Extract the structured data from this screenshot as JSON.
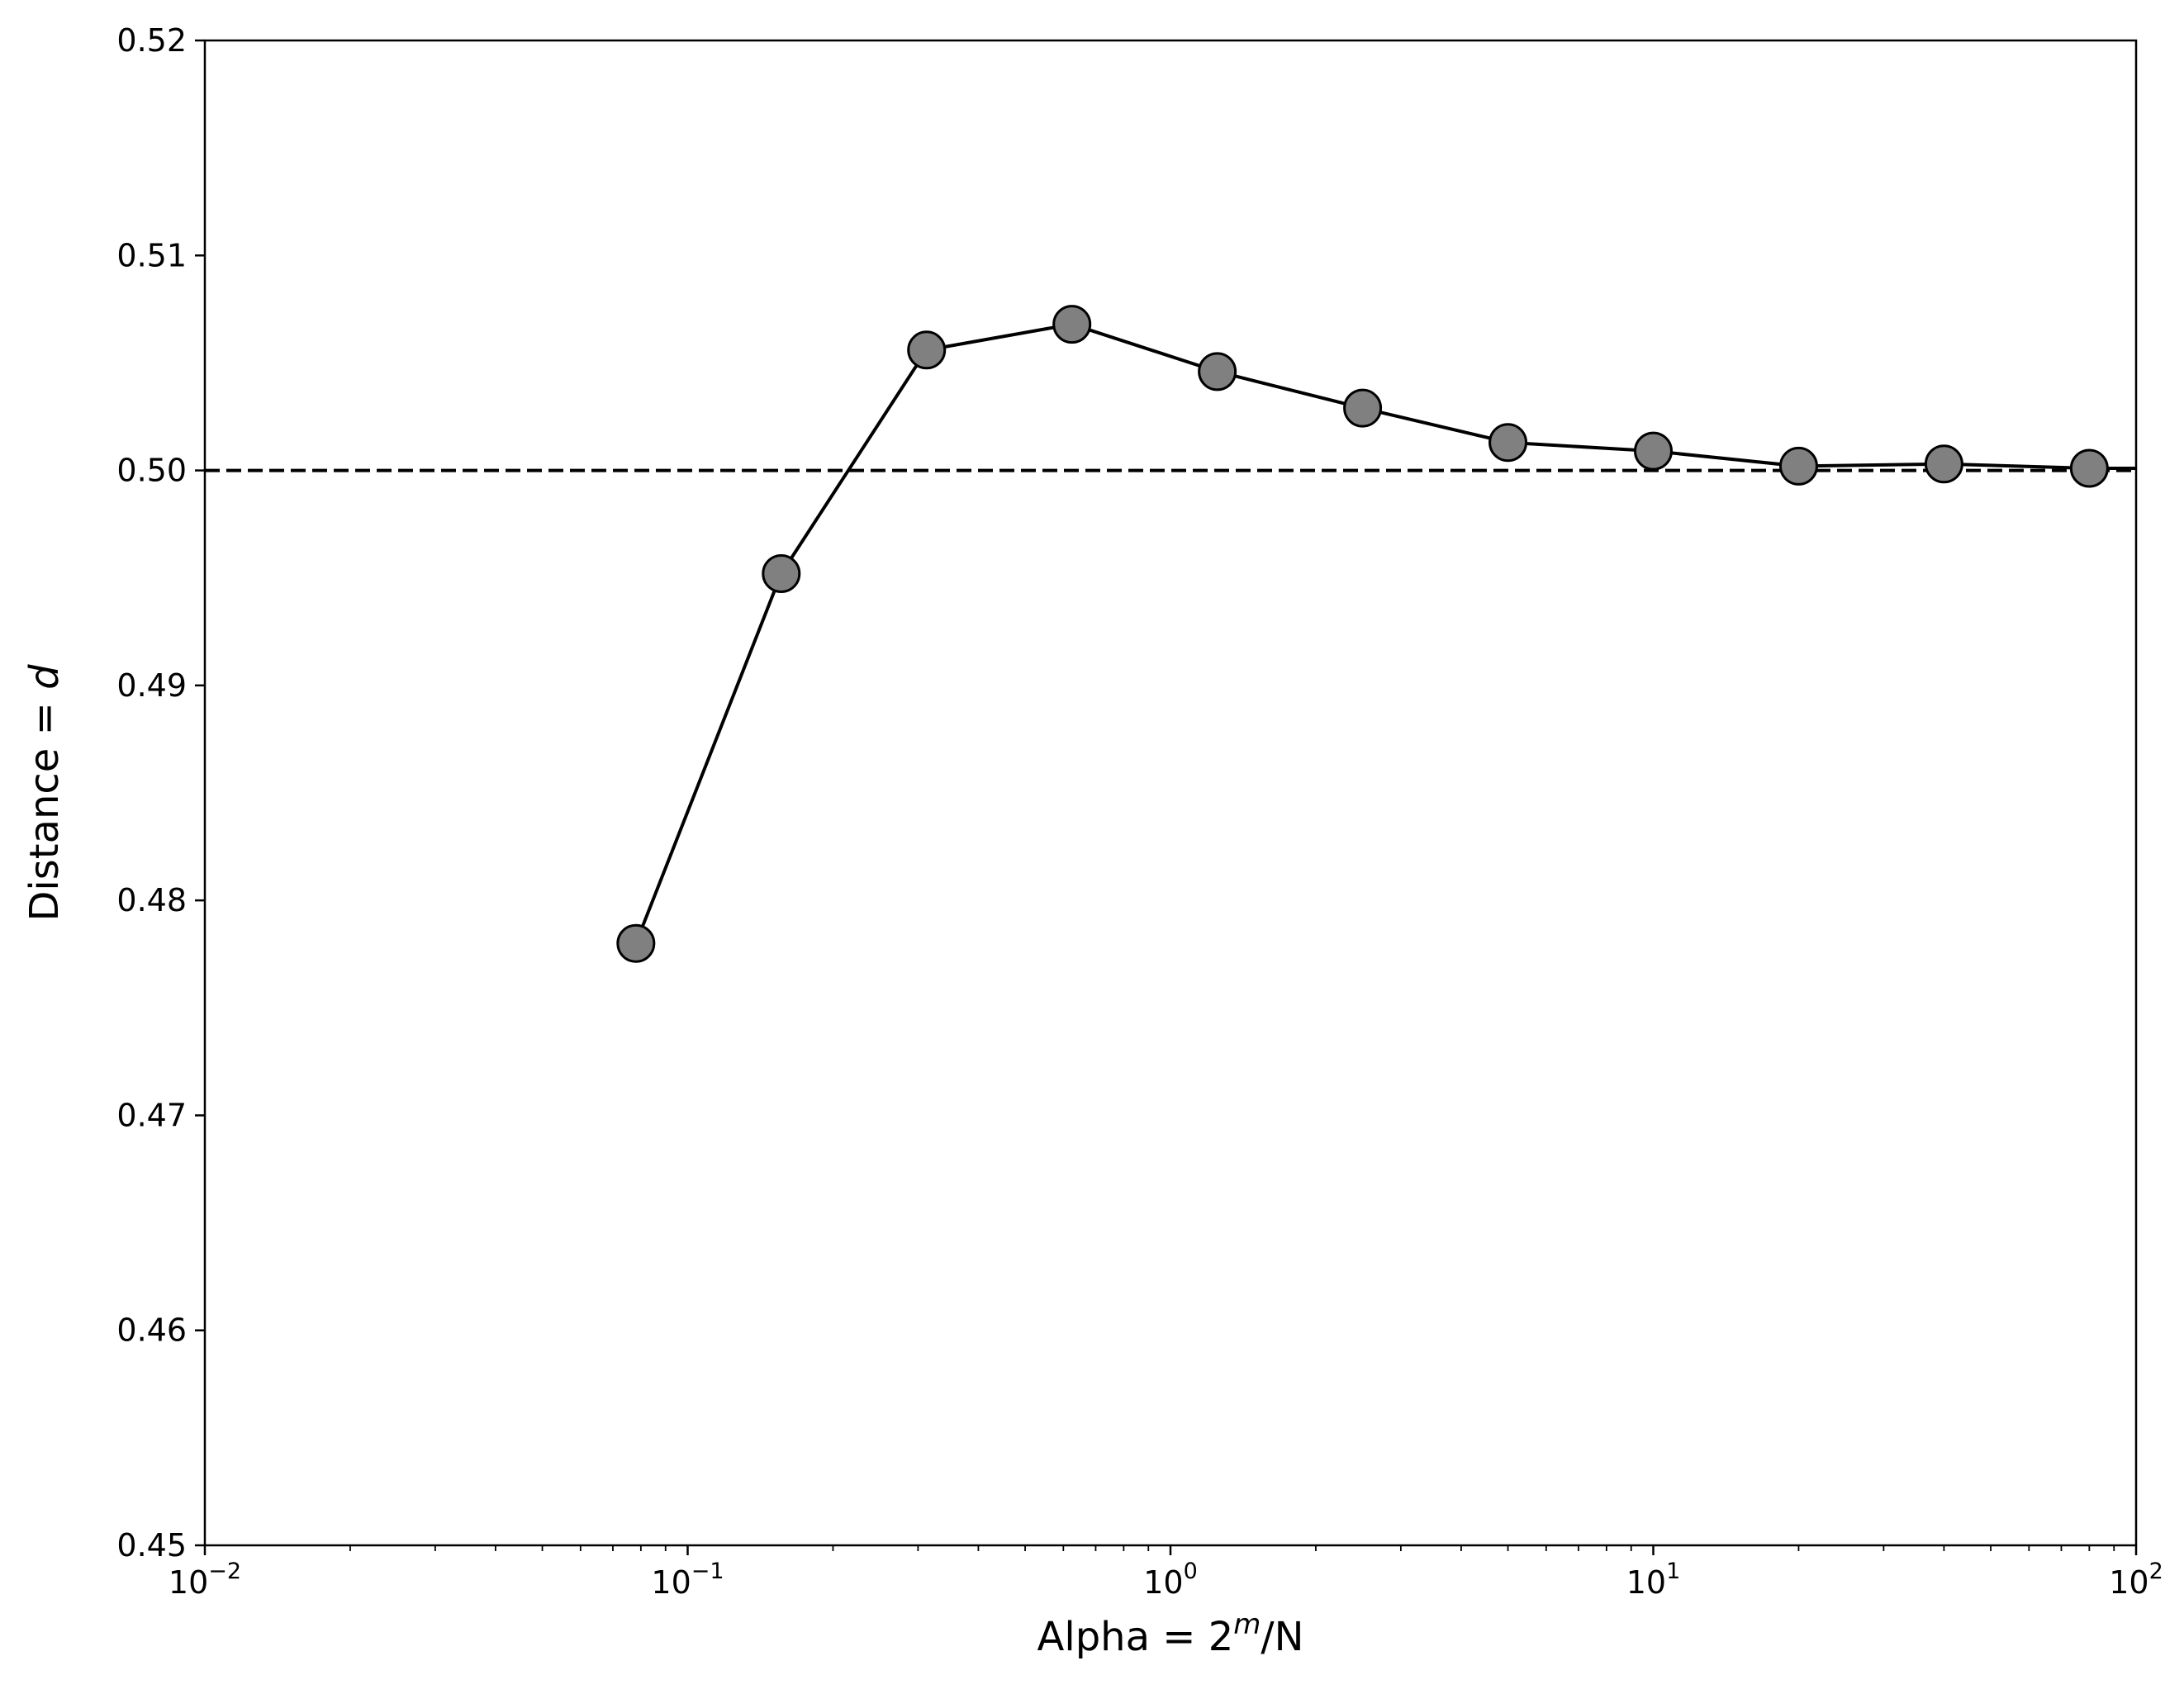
{
  "chart_data": {
    "type": "line",
    "title": "",
    "xlabel": {
      "prefix": "Alpha = 2",
      "sup": "m",
      "suffix": "/N"
    },
    "ylabel": {
      "prefix": "Distance = ",
      "italic": "d"
    },
    "x_scale": "log",
    "xlim": [
      0.01,
      100
    ],
    "ylim": [
      0.45,
      0.52
    ],
    "grid": false,
    "x_ticks": [
      {
        "value": 0.01,
        "base": "10",
        "exp": "−2"
      },
      {
        "value": 0.1,
        "base": "10",
        "exp": "−1"
      },
      {
        "value": 1,
        "base": "10",
        "exp": "0"
      },
      {
        "value": 10,
        "base": "10",
        "exp": "1"
      },
      {
        "value": 100,
        "base": "10",
        "exp": "2"
      }
    ],
    "y_ticks": [
      {
        "value": 0.45,
        "label": "0.45"
      },
      {
        "value": 0.46,
        "label": "0.46"
      },
      {
        "value": 0.47,
        "label": "0.47"
      },
      {
        "value": 0.48,
        "label": "0.48"
      },
      {
        "value": 0.49,
        "label": "0.49"
      },
      {
        "value": 0.5,
        "label": "0.50"
      },
      {
        "value": 0.51,
        "label": "0.51"
      },
      {
        "value": 0.52,
        "label": "0.52"
      }
    ],
    "series": [
      {
        "x": [
          0.078125,
          0.15625,
          0.3125,
          0.625,
          1.25,
          2.5,
          5,
          10,
          20,
          40,
          80
        ],
        "y": [
          0.478,
          0.4952,
          0.5056,
          0.5068,
          0.5046,
          0.5029,
          0.5013,
          0.5009,
          0.5002,
          0.5003,
          0.5001
        ],
        "line_color": "#000000",
        "marker_fill": "#808080",
        "marker_edge": "#000000",
        "extends_to_axis_edge_y": 0.5001
      }
    ],
    "reference_lines": [
      {
        "orientation": "horizontal",
        "y": 0.5,
        "style": "dashed",
        "color": "#000000"
      }
    ]
  }
}
